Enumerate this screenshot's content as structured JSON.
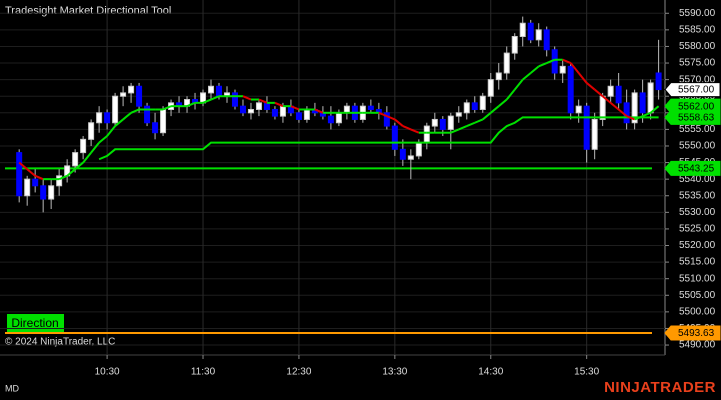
{
  "chart_data": {
    "type": "candlestick",
    "title": "Tradesight Market Directional Tool",
    "copyright": "© 2024 NinjaTrader, LLC",
    "indicator_label": "Direction",
    "footer_left": "MD",
    "brand": "NINJATRADER",
    "x": [
      575,
      580,
      585,
      590,
      595,
      600,
      605,
      610,
      615,
      620,
      625,
      630,
      635,
      640,
      645,
      650,
      655,
      660,
      665,
      670,
      675,
      680,
      685,
      690,
      695,
      700,
      705,
      710,
      715,
      720,
      725,
      730,
      735,
      740,
      745,
      750,
      755,
      760,
      765,
      770,
      775,
      780,
      785,
      790,
      795,
      800,
      805,
      810,
      815,
      820,
      825,
      830,
      835,
      840,
      845,
      850,
      855,
      860,
      865,
      870,
      875,
      880,
      885,
      890,
      895,
      900,
      905,
      910,
      915,
      920,
      925,
      930,
      935,
      940,
      945,
      950,
      955,
      960,
      965,
      970,
      975
    ],
    "open": [
      5548,
      5535,
      5540,
      5538,
      5534,
      5538,
      5541,
      5544,
      5548,
      5552,
      5557,
      5560,
      5557,
      5565,
      5566,
      5568,
      5562,
      5557,
      5554,
      5561,
      5563,
      5562,
      5564,
      5563,
      5566,
      5568,
      5565,
      5566,
      5562,
      5560,
      5561,
      5563,
      5561,
      5559,
      5562,
      5560,
      5558,
      5561,
      5560,
      5559,
      5557,
      5560,
      5562,
      5558,
      5562,
      5561,
      5560,
      5556,
      5549,
      5546,
      5547,
      5551,
      5556,
      5558,
      5555,
      5559,
      5560,
      5563,
      5561,
      5565,
      5570,
      5572,
      5578,
      5583,
      5587,
      5582,
      5585,
      5579,
      5572,
      5574,
      5560,
      5562,
      5549,
      5558,
      5565,
      5568,
      5563,
      5557,
      5566,
      5560,
      5572
    ],
    "high": [
      5549,
      5541,
      5543,
      5540,
      5540,
      5543,
      5546,
      5549,
      5553,
      5558,
      5562,
      5561,
      5566,
      5568,
      5569,
      5569,
      5563,
      5560,
      5562,
      5564,
      5565,
      5565,
      5566,
      5567,
      5570,
      5569,
      5568,
      5567,
      5564,
      5563,
      5564,
      5565,
      5562,
      5563,
      5564,
      5561,
      5562,
      5563,
      5562,
      5562,
      5561,
      5563,
      5563,
      5563,
      5564,
      5563,
      5562,
      5557,
      5552,
      5549,
      5552,
      5557,
      5560,
      5559,
      5560,
      5562,
      5564,
      5565,
      5566,
      5572,
      5575,
      5580,
      5584,
      5589,
      5588,
      5587,
      5586,
      5580,
      5576,
      5575,
      5564,
      5563,
      5560,
      5566,
      5570,
      5572,
      5567,
      5567,
      5570,
      5570,
      5582
    ],
    "low": [
      5533,
      5532,
      5536,
      5530,
      5531,
      5535,
      5539,
      5542,
      5546,
      5550,
      5554,
      5555,
      5556,
      5562,
      5563,
      5560,
      5556,
      5552,
      5553,
      5559,
      5560,
      5560,
      5561,
      5562,
      5564,
      5564,
      5563,
      5561,
      5559,
      5558,
      5559,
      5560,
      5558,
      5557,
      5559,
      5557,
      5557,
      5559,
      5558,
      5555,
      5556,
      5558,
      5557,
      5557,
      5560,
      5558,
      5555,
      5547,
      5544,
      5540,
      5546,
      5549,
      5554,
      5553,
      5549,
      5557,
      5558,
      5560,
      5560,
      5563,
      5567,
      5570,
      5576,
      5580,
      5581,
      5580,
      5577,
      5570,
      5569,
      5558,
      5557,
      5545,
      5546,
      5556,
      5563,
      5561,
      5555,
      5555,
      5557,
      5558,
      5564
    ],
    "close": [
      5535,
      5540,
      5538,
      5534,
      5538,
      5541,
      5544,
      5548,
      5552,
      5557,
      5560,
      5557,
      5565,
      5566,
      5568,
      5562,
      5557,
      5554,
      5561,
      5563,
      5562,
      5564,
      5563,
      5566,
      5568,
      5565,
      5566,
      5562,
      5560,
      5561,
      5563,
      5561,
      5559,
      5562,
      5560,
      5558,
      5561,
      5560,
      5559,
      5557,
      5560,
      5562,
      5558,
      5562,
      5561,
      5560,
      5556,
      5549,
      5546,
      5547,
      5551,
      5556,
      5558,
      5555,
      5559,
      5560,
      5563,
      5561,
      5565,
      5570,
      5572,
      5578,
      5583,
      5587,
      5582,
      5585,
      5579,
      5572,
      5574,
      5560,
      5562,
      5549,
      5558,
      5565,
      5568,
      5563,
      5557,
      5566,
      5560,
      5569,
      5567
    ],
    "last_close_label": "5567.00",
    "up_color": "#ffffff",
    "down_color": "#0000ff",
    "ma": {
      "values": [
        5545,
        5543,
        5541,
        5540,
        5540,
        5540,
        5541,
        5543,
        5545,
        5548,
        5551,
        5553,
        5556,
        5558,
        5560,
        5561,
        5561,
        5561,
        5561,
        5562,
        5562,
        5562,
        5563,
        5563,
        5564,
        5565,
        5565,
        5565,
        5565,
        5564,
        5564,
        5563,
        5563,
        5562,
        5562,
        5561,
        5561,
        5561,
        5560,
        5560,
        5560,
        5560,
        5560,
        5560,
        5560,
        5560,
        5559,
        5558,
        5556,
        5555,
        5554,
        5554,
        5554,
        5554,
        5554,
        5555,
        5556,
        5557,
        5558,
        5560,
        5562,
        5564,
        5567,
        5570,
        5572,
        5574,
        5575,
        5576,
        5576,
        5575,
        5572,
        5569,
        5567,
        5565,
        5563,
        5561,
        5559,
        5558,
        5559,
        5560,
        5562
      ],
      "last_label": "5562.00",
      "up_color": "#00e000",
      "down_color": "#e00000"
    },
    "stop": {
      "values": [
        null,
        null,
        null,
        null,
        null,
        null,
        null,
        null,
        null,
        null,
        5546,
        5547,
        5549,
        5549,
        5549,
        5549,
        5549,
        5549,
        5549,
        5549,
        5549,
        5549,
        5549,
        5549,
        5551,
        5551,
        5551,
        5551,
        5551,
        5551,
        5551,
        5551,
        5551,
        5551,
        5551,
        5551,
        5551,
        5551,
        5551,
        5551,
        5551,
        5551,
        5551,
        5551,
        5551,
        5551,
        5551,
        5551,
        5551,
        5551,
        5551,
        5551,
        5551,
        5551,
        5551,
        5551,
        5551,
        5551,
        5551,
        5551,
        5554,
        5556,
        5557,
        5558.63,
        5558.63,
        5558.63,
        5558.63,
        5558.63,
        5558.63,
        5558.63,
        5558.63,
        5558.63,
        5558.63,
        5558.63,
        5558.63,
        5558.63,
        5558.63,
        5558.63,
        5558.63,
        5558.63,
        5558.63
      ],
      "last_label": "5558.63",
      "color": "#00e000"
    },
    "hlines": [
      {
        "value": 5543.25,
        "label": "5543.25",
        "color": "#00e000"
      },
      {
        "value": 5493.63,
        "label": "5493.63",
        "color": "#ff9900"
      }
    ],
    "xlim": [
      563,
      979
    ],
    "xticks": [
      {
        "value": 630,
        "label": "10:30"
      },
      {
        "value": 690,
        "label": "11:30"
      },
      {
        "value": 750,
        "label": "12:30"
      },
      {
        "value": 810,
        "label": "13:30"
      },
      {
        "value": 870,
        "label": "14:30"
      },
      {
        "value": 930,
        "label": "15:30"
      }
    ],
    "ylim": [
      5487,
      5594
    ],
    "yticks": [
      {
        "value": 5490,
        "label": "5490.00"
      },
      {
        "value": 5495,
        "label": "5495.00"
      },
      {
        "value": 5500,
        "label": "5500.00"
      },
      {
        "value": 5505,
        "label": "5505.00"
      },
      {
        "value": 5510,
        "label": "5510.00"
      },
      {
        "value": 5515,
        "label": "5515.00"
      },
      {
        "value": 5520,
        "label": "5520.00"
      },
      {
        "value": 5525,
        "label": "5525.00"
      },
      {
        "value": 5530,
        "label": "5530.00"
      },
      {
        "value": 5535,
        "label": "5535.00"
      },
      {
        "value": 5540,
        "label": "5540.00"
      },
      {
        "value": 5545,
        "label": "5545.00"
      },
      {
        "value": 5550,
        "label": "5550.00"
      },
      {
        "value": 5555,
        "label": "5555.00"
      },
      {
        "value": 5560,
        "label": "5560.00"
      },
      {
        "value": 5565,
        "label": "5565.00"
      },
      {
        "value": 5570,
        "label": "5570.00"
      },
      {
        "value": 5575,
        "label": "5575.00"
      },
      {
        "value": 5580,
        "label": "5580.00"
      },
      {
        "value": 5585,
        "label": "5585.00"
      },
      {
        "value": 5590,
        "label": "5590.00"
      }
    ],
    "grid": true
  }
}
